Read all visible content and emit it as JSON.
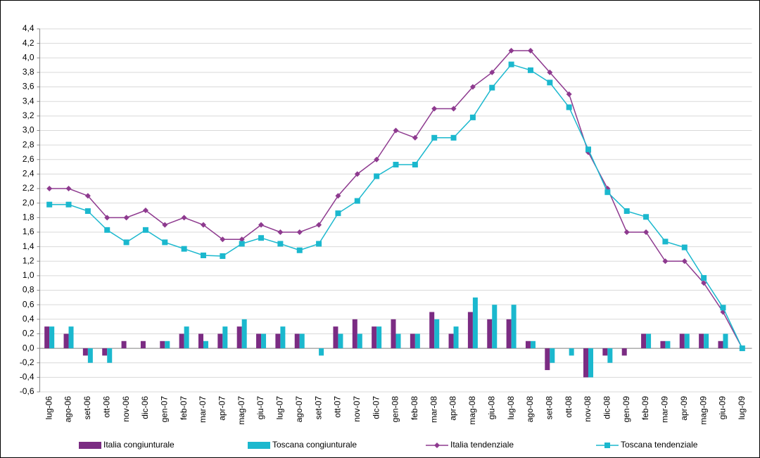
{
  "chart_data": {
    "type": "combo",
    "categories": [
      "lug-06",
      "ago-06",
      "set-06",
      "ott-06",
      "nov-06",
      "dic-06",
      "gen-07",
      "feb-07",
      "mar-07",
      "apr-07",
      "mag-07",
      "giu-07",
      "lug-07",
      "ago-07",
      "set-07",
      "ott-07",
      "nov-07",
      "dic-07",
      "gen-08",
      "feb-08",
      "mar-08",
      "apr-08",
      "mag-08",
      "giu-08",
      "lug-08",
      "ago-08",
      "set-08",
      "ott-08",
      "nov-08",
      "dic-08",
      "gen-09",
      "feb-09",
      "mar-09",
      "apr-09",
      "mag-09",
      "giu-09",
      "lug-09"
    ],
    "series": [
      {
        "name": "Italia congiunturale",
        "type": "bar",
        "color": "#7b2c83",
        "values": [
          0.3,
          0.2,
          -0.1,
          -0.1,
          0.1,
          0.1,
          0.1,
          0.2,
          0.2,
          0.2,
          0.3,
          0.2,
          0.2,
          0.2,
          0,
          0.3,
          0.4,
          0.3,
          0.4,
          0.2,
          0.5,
          0.2,
          0.5,
          0.4,
          0.4,
          0.1,
          -0.3,
          0,
          -0.4,
          -0.1,
          -0.1,
          0.2,
          0.1,
          0.2,
          0.2,
          0.1,
          0
        ]
      },
      {
        "name": "Toscana congiunturale",
        "type": "bar",
        "color": "#1bb8ce",
        "values": [
          0.3,
          0.3,
          -0.2,
          -0.2,
          0,
          0,
          0.1,
          0.3,
          0.1,
          0.3,
          0.4,
          0.2,
          0.3,
          0.2,
          -0.1,
          0.2,
          0.2,
          0.3,
          0.2,
          0.2,
          0.4,
          0.3,
          0.7,
          0.6,
          0.6,
          0.1,
          -0.2,
          -0.1,
          -0.4,
          -0.2,
          0,
          0.2,
          0.1,
          0.2,
          0.2,
          0.2,
          0
        ]
      },
      {
        "name": "Italia tendenziale",
        "type": "line",
        "marker": "diamond",
        "color": "#8e3a8f",
        "values": [
          2.2,
          2.2,
          2.1,
          1.8,
          1.8,
          1.9,
          1.7,
          1.8,
          1.7,
          1.5,
          1.5,
          1.7,
          1.6,
          1.6,
          1.7,
          2.1,
          2.4,
          2.6,
          3.0,
          2.9,
          3.3,
          3.3,
          3.6,
          3.8,
          4.1,
          4.1,
          3.8,
          3.5,
          2.7,
          2.2,
          1.6,
          1.6,
          1.2,
          1.2,
          0.9,
          0.5,
          0.0
        ]
      },
      {
        "name": "Toscana tendenziale",
        "type": "line",
        "marker": "square",
        "color": "#1bb8ce",
        "values": [
          1.98,
          1.98,
          1.89,
          1.63,
          1.46,
          1.63,
          1.46,
          1.37,
          1.28,
          1.27,
          1.44,
          1.52,
          1.44,
          1.35,
          1.44,
          1.86,
          2.03,
          2.37,
          2.53,
          2.53,
          2.9,
          2.9,
          3.18,
          3.59,
          3.91,
          3.83,
          3.66,
          3.32,
          2.74,
          2.15,
          1.89,
          1.81,
          1.47,
          1.39,
          0.97,
          0.56,
          0.0
        ]
      }
    ],
    "ylim": [
      -0.6,
      4.4
    ],
    "yticks": [
      {
        "value": -0.6,
        "label": "-0,6"
      },
      {
        "value": -0.4,
        "label": "-0,4"
      },
      {
        "value": -0.2,
        "label": "-0,2"
      },
      {
        "value": 0,
        "label": "0,0"
      },
      {
        "value": 0.2,
        "label": "0,2"
      },
      {
        "value": 0.4,
        "label": "0,4"
      },
      {
        "value": 0.6,
        "label": "0,6"
      },
      {
        "value": 0.8,
        "label": "0,8"
      },
      {
        "value": 1,
        "label": "1,0"
      },
      {
        "value": 1.2,
        "label": "1,2"
      },
      {
        "value": 1.4,
        "label": "1,4"
      },
      {
        "value": 1.6,
        "label": "1,6"
      },
      {
        "value": 1.8,
        "label": "1,8"
      },
      {
        "value": 2,
        "label": "2,0"
      },
      {
        "value": 2.2,
        "label": "2,2"
      },
      {
        "value": 2.4,
        "label": "2,4"
      },
      {
        "value": 2.6,
        "label": "2,6"
      },
      {
        "value": 2.8,
        "label": "2,8"
      },
      {
        "value": 3,
        "label": "3,0"
      },
      {
        "value": 3.2,
        "label": "3,2"
      },
      {
        "value": 3.4,
        "label": "3,4"
      },
      {
        "value": 3.6,
        "label": "3,6"
      },
      {
        "value": 3.8,
        "label": "3,8"
      },
      {
        "value": 4,
        "label": "4,0"
      },
      {
        "value": 4.2,
        "label": "4,2"
      },
      {
        "value": 4.4,
        "label": "4,4"
      }
    ],
    "grid": true,
    "legend": "bottom"
  }
}
